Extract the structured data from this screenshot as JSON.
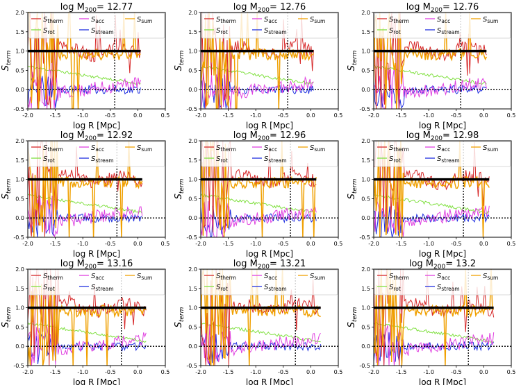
{
  "figure": {
    "panel_titles_prefix": "log M",
    "panel_titles_sub": "200",
    "panel_titles_eq": "= ",
    "xlabel": "log R [Mpc]",
    "ylabel_main": "S",
    "ylabel_sub": "term",
    "legend": [
      {
        "key": "therm",
        "main": "S",
        "sub": "therm",
        "color": "#d62728"
      },
      {
        "key": "acc",
        "main": "S",
        "sub": "acc",
        "color": "#e040e0"
      },
      {
        "key": "sum",
        "main": "S",
        "sub": "sum",
        "color": "#f0a000"
      },
      {
        "key": "rot",
        "main": "S",
        "sub": "rot",
        "color": "#80e040"
      },
      {
        "key": "stream",
        "main": "S",
        "sub": "stream",
        "color": "#2030e0"
      }
    ]
  },
  "chart_data": [
    {
      "type": "line",
      "title_value": "12.77",
      "xlim": [
        -2.0,
        0.5
      ],
      "ylim": [
        -0.5,
        2.0
      ],
      "rvir_log": -0.42,
      "xmax_data": 0.05,
      "seed": 11,
      "xticks": [
        "-2.0",
        "-1.5",
        "-1.0",
        "-0.5",
        "0.0",
        "0.5"
      ],
      "yticks": [
        "-0.5",
        "0.0",
        "0.5",
        "1.0",
        "1.5",
        "2.0"
      ]
    },
    {
      "type": "line",
      "title_value": "12.76",
      "xlim": [
        -2.0,
        0.5
      ],
      "ylim": [
        -0.5,
        2.0
      ],
      "rvir_log": -0.42,
      "xmax_data": 0.05,
      "seed": 23,
      "xticks": [
        "-2.0",
        "-1.5",
        "-1.0",
        "-0.5",
        "0.0",
        "0.5"
      ],
      "yticks": [
        "-0.5",
        "0.0",
        "0.5",
        "1.0",
        "1.5",
        "2.0"
      ]
    },
    {
      "type": "line",
      "title_value": "12.76",
      "xlim": [
        -2.0,
        0.5
      ],
      "ylim": [
        -0.5,
        2.0
      ],
      "rvir_log": -0.42,
      "xmax_data": 0.05,
      "seed": 37,
      "xticks": [
        "-2.0",
        "-1.5",
        "-1.0",
        "-0.5",
        "0.0",
        "0.5"
      ],
      "yticks": [
        "-0.5",
        "0.0",
        "0.5",
        "1.0",
        "1.5",
        "2.0"
      ]
    },
    {
      "type": "line",
      "title_value": "12.92",
      "xlim": [
        -2.0,
        0.5
      ],
      "ylim": [
        -0.5,
        2.0
      ],
      "rvir_log": -0.38,
      "xmax_data": 0.08,
      "seed": 41,
      "xticks": [
        "-2.0",
        "-1.5",
        "-1.0",
        "-0.5",
        "0.0",
        "0.5"
      ],
      "yticks": [
        "-0.5",
        "0.0",
        "0.5",
        "1.0",
        "1.5",
        "2.0"
      ]
    },
    {
      "type": "line",
      "title_value": "12.96",
      "xlim": [
        -2.0,
        0.5
      ],
      "ylim": [
        -0.5,
        2.0
      ],
      "rvir_log": -0.37,
      "xmax_data": 0.1,
      "seed": 53,
      "xticks": [
        "-2.0",
        "-1.5",
        "-1.0",
        "-0.5",
        "0.0",
        "0.5"
      ],
      "yticks": [
        "-0.5",
        "0.0",
        "0.5",
        "1.0",
        "1.5",
        "2.0"
      ]
    },
    {
      "type": "line",
      "title_value": "12.98",
      "xlim": [
        -2.0,
        0.5
      ],
      "ylim": [
        -0.5,
        2.0
      ],
      "rvir_log": -0.37,
      "xmax_data": 0.1,
      "seed": 67,
      "xticks": [
        "-2.0",
        "-1.5",
        "-1.0",
        "-0.5",
        "0.0",
        "0.5"
      ],
      "yticks": [
        "-0.5",
        "0.0",
        "0.5",
        "1.0",
        "1.5",
        "2.0"
      ]
    },
    {
      "type": "line",
      "title_value": "13.16",
      "xlim": [
        -2.0,
        0.5
      ],
      "ylim": [
        -0.5,
        2.0
      ],
      "rvir_log": -0.3,
      "xmax_data": 0.15,
      "seed": 71,
      "xticks": [
        "-2.0",
        "-1.5",
        "-1.0",
        "-0.5",
        "0.0",
        "0.5"
      ],
      "yticks": [
        "-0.5",
        "0.0",
        "0.5",
        "1.0",
        "1.5",
        "2.0"
      ]
    },
    {
      "type": "line",
      "title_value": "13.21",
      "xlim": [
        -2.0,
        0.5
      ],
      "ylim": [
        -0.5,
        2.0
      ],
      "rvir_log": -0.28,
      "xmax_data": 0.18,
      "seed": 83,
      "xticks": [
        "-2.0",
        "-1.5",
        "-1.0",
        "-0.5",
        "0.0",
        "0.5"
      ],
      "yticks": [
        "-0.5",
        "0.0",
        "0.5",
        "1.0",
        "1.5",
        "2.0"
      ]
    },
    {
      "type": "line",
      "title_value": "13.2",
      "xlim": [
        -2.0,
        0.5
      ],
      "ylim": [
        -0.5,
        2.0
      ],
      "rvir_log": -0.28,
      "xmax_data": 0.18,
      "seed": 97,
      "xticks": [
        "-2.0",
        "-1.5",
        "-1.0",
        "-0.5",
        "0.0",
        "0.5"
      ],
      "yticks": [
        "-0.5",
        "0.0",
        "0.5",
        "1.0",
        "1.5",
        "2.0"
      ]
    }
  ]
}
